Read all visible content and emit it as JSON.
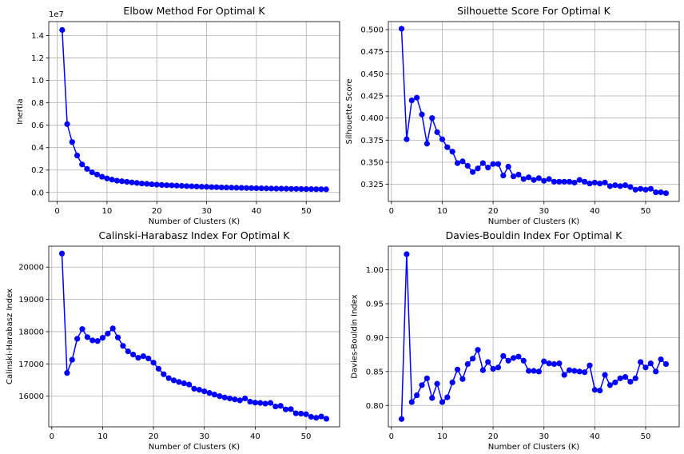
{
  "chart_data": [
    {
      "type": "line",
      "title": "Elbow Method For Optimal K",
      "xlabel": "Number of Clusters (K)",
      "ylabel": "Inertia",
      "offset_text": "1e7",
      "xlim": [
        -1.7,
        56.7
      ],
      "ylim": [
        -0.08,
        1.525
      ],
      "xticks": [
        0,
        10,
        20,
        30,
        40,
        50
      ],
      "yticks": [
        0.0,
        0.2,
        0.4,
        0.6,
        0.8,
        1.0,
        1.2,
        1.4
      ],
      "ytick_labels": [
        "0.0",
        "0.2",
        "0.4",
        "0.6",
        "0.8",
        "1.0",
        "1.2",
        "1.4"
      ],
      "grid": true,
      "color": "#0000ff",
      "marker": "circle",
      "series": [
        {
          "x": [
            1,
            2,
            3,
            4,
            5,
            6,
            7,
            8,
            9,
            10,
            11,
            12,
            13,
            14,
            15,
            16,
            17,
            18,
            19,
            20,
            21,
            22,
            23,
            24,
            25,
            26,
            27,
            28,
            29,
            30,
            31,
            32,
            33,
            34,
            35,
            36,
            37,
            38,
            39,
            40,
            41,
            42,
            43,
            44,
            45,
            46,
            47,
            48,
            49,
            50,
            51,
            52,
            53,
            54
          ],
          "values": [
            1.45,
            0.61,
            0.45,
            0.33,
            0.25,
            0.21,
            0.18,
            0.16,
            0.14,
            0.125,
            0.115,
            0.105,
            0.1,
            0.095,
            0.09,
            0.085,
            0.08,
            0.077,
            0.073,
            0.07,
            0.067,
            0.065,
            0.063,
            0.061,
            0.059,
            0.057,
            0.055,
            0.053,
            0.051,
            0.05,
            0.048,
            0.047,
            0.045,
            0.044,
            0.043,
            0.042,
            0.041,
            0.04,
            0.039,
            0.038,
            0.037,
            0.036,
            0.035,
            0.034,
            0.034,
            0.033,
            0.032,
            0.032,
            0.031,
            0.03,
            0.03,
            0.029,
            0.029,
            0.028
          ]
        }
      ]
    },
    {
      "type": "line",
      "title": "Silhouette Score For Optimal K",
      "xlabel": "Number of Clusters (K)",
      "ylabel": "Silhouette Score",
      "xlim": [
        -0.6,
        56.6
      ],
      "ylim": [
        0.3057,
        0.5091
      ],
      "xticks": [
        0,
        10,
        20,
        30,
        40,
        50
      ],
      "yticks": [
        0.325,
        0.35,
        0.375,
        0.4,
        0.425,
        0.45,
        0.475,
        0.5
      ],
      "ytick_labels": [
        "0.325",
        "0.350",
        "0.375",
        "0.400",
        "0.425",
        "0.450",
        "0.475",
        "0.500"
      ],
      "grid": true,
      "color": "#0000ff",
      "marker": "circle",
      "series": [
        {
          "x": [
            2,
            3,
            4,
            5,
            6,
            7,
            8,
            9,
            10,
            11,
            12,
            13,
            14,
            15,
            16,
            17,
            18,
            19,
            20,
            21,
            22,
            23,
            24,
            25,
            26,
            27,
            28,
            29,
            30,
            31,
            32,
            33,
            34,
            35,
            36,
            37,
            38,
            39,
            40,
            41,
            42,
            43,
            44,
            45,
            46,
            47,
            48,
            49,
            50,
            51,
            52,
            53,
            54
          ],
          "values": [
            0.501,
            0.376,
            0.42,
            0.423,
            0.404,
            0.371,
            0.4,
            0.384,
            0.376,
            0.367,
            0.362,
            0.349,
            0.351,
            0.346,
            0.339,
            0.343,
            0.349,
            0.344,
            0.348,
            0.348,
            0.335,
            0.345,
            0.334,
            0.336,
            0.331,
            0.333,
            0.33,
            0.332,
            0.329,
            0.331,
            0.328,
            0.328,
            0.328,
            0.328,
            0.327,
            0.33,
            0.328,
            0.326,
            0.327,
            0.326,
            0.327,
            0.323,
            0.324,
            0.323,
            0.324,
            0.322,
            0.319,
            0.32,
            0.319,
            0.32,
            0.316,
            0.316,
            0.315
          ]
        }
      ]
    },
    {
      "type": "line",
      "title": "Calinski-Harabasz Index For Optimal K",
      "xlabel": "Number of Clusters (K)",
      "ylabel": "Calinski-Harabasz Index",
      "xlim": [
        -0.6,
        56.6
      ],
      "ylim": [
        15050,
        20650
      ],
      "xticks": [
        0,
        10,
        20,
        30,
        40,
        50
      ],
      "yticks": [
        16000,
        17000,
        18000,
        19000,
        20000
      ],
      "ytick_labels": [
        "16000",
        "17000",
        "18000",
        "19000",
        "20000"
      ],
      "grid": true,
      "color": "#0000ff",
      "marker": "circle",
      "series": [
        {
          "x": [
            2,
            3,
            4,
            5,
            6,
            7,
            8,
            9,
            10,
            11,
            12,
            13,
            14,
            15,
            16,
            17,
            18,
            19,
            20,
            21,
            22,
            23,
            24,
            25,
            26,
            27,
            28,
            29,
            30,
            31,
            32,
            33,
            34,
            35,
            36,
            37,
            38,
            39,
            40,
            41,
            42,
            43,
            44,
            45,
            46,
            47,
            48,
            49,
            50,
            51,
            52,
            53,
            54
          ],
          "values": [
            20420,
            16720,
            17130,
            17780,
            18080,
            17830,
            17730,
            17710,
            17810,
            17940,
            18100,
            17820,
            17560,
            17390,
            17290,
            17190,
            17240,
            17170,
            17040,
            16850,
            16680,
            16560,
            16490,
            16440,
            16400,
            16360,
            16230,
            16200,
            16150,
            16100,
            16050,
            16000,
            15960,
            15930,
            15900,
            15870,
            15930,
            15830,
            15800,
            15790,
            15770,
            15790,
            15680,
            15700,
            15590,
            15600,
            15470,
            15460,
            15440,
            15360,
            15330,
            15370,
            15300
          ]
        }
      ]
    },
    {
      "type": "line",
      "title": "Davies-Bouldin Index For Optimal K",
      "xlabel": "Number of Clusters (K)",
      "ylabel": "Davies-Bouldin Index",
      "xlim": [
        -0.6,
        56.6
      ],
      "ylim": [
        0.7685,
        1.0348
      ],
      "xticks": [
        0,
        10,
        20,
        30,
        40,
        50
      ],
      "yticks": [
        0.8,
        0.85,
        0.9,
        0.95,
        1.0
      ],
      "ytick_labels": [
        "0.80",
        "0.85",
        "0.90",
        "0.95",
        "1.00"
      ],
      "grid": true,
      "color": "#0000ff",
      "marker": "circle",
      "series": [
        {
          "x": [
            2,
            3,
            4,
            5,
            6,
            7,
            8,
            9,
            10,
            11,
            12,
            13,
            14,
            15,
            16,
            17,
            18,
            19,
            20,
            21,
            22,
            23,
            24,
            25,
            26,
            27,
            28,
            29,
            30,
            31,
            32,
            33,
            34,
            35,
            36,
            37,
            38,
            39,
            40,
            41,
            42,
            43,
            44,
            45,
            46,
            47,
            48,
            49,
            50,
            51,
            52,
            53,
            54
          ],
          "values": [
            0.78,
            1.023,
            0.805,
            0.815,
            0.83,
            0.84,
            0.811,
            0.832,
            0.805,
            0.812,
            0.834,
            0.853,
            0.839,
            0.861,
            0.869,
            0.882,
            0.852,
            0.864,
            0.854,
            0.856,
            0.873,
            0.866,
            0.87,
            0.872,
            0.866,
            0.851,
            0.851,
            0.85,
            0.865,
            0.862,
            0.861,
            0.862,
            0.845,
            0.852,
            0.851,
            0.85,
            0.849,
            0.859,
            0.823,
            0.822,
            0.845,
            0.83,
            0.834,
            0.84,
            0.842,
            0.835,
            0.84,
            0.864,
            0.856,
            0.862,
            0.85,
            0.868,
            0.861
          ]
        }
      ]
    }
  ]
}
